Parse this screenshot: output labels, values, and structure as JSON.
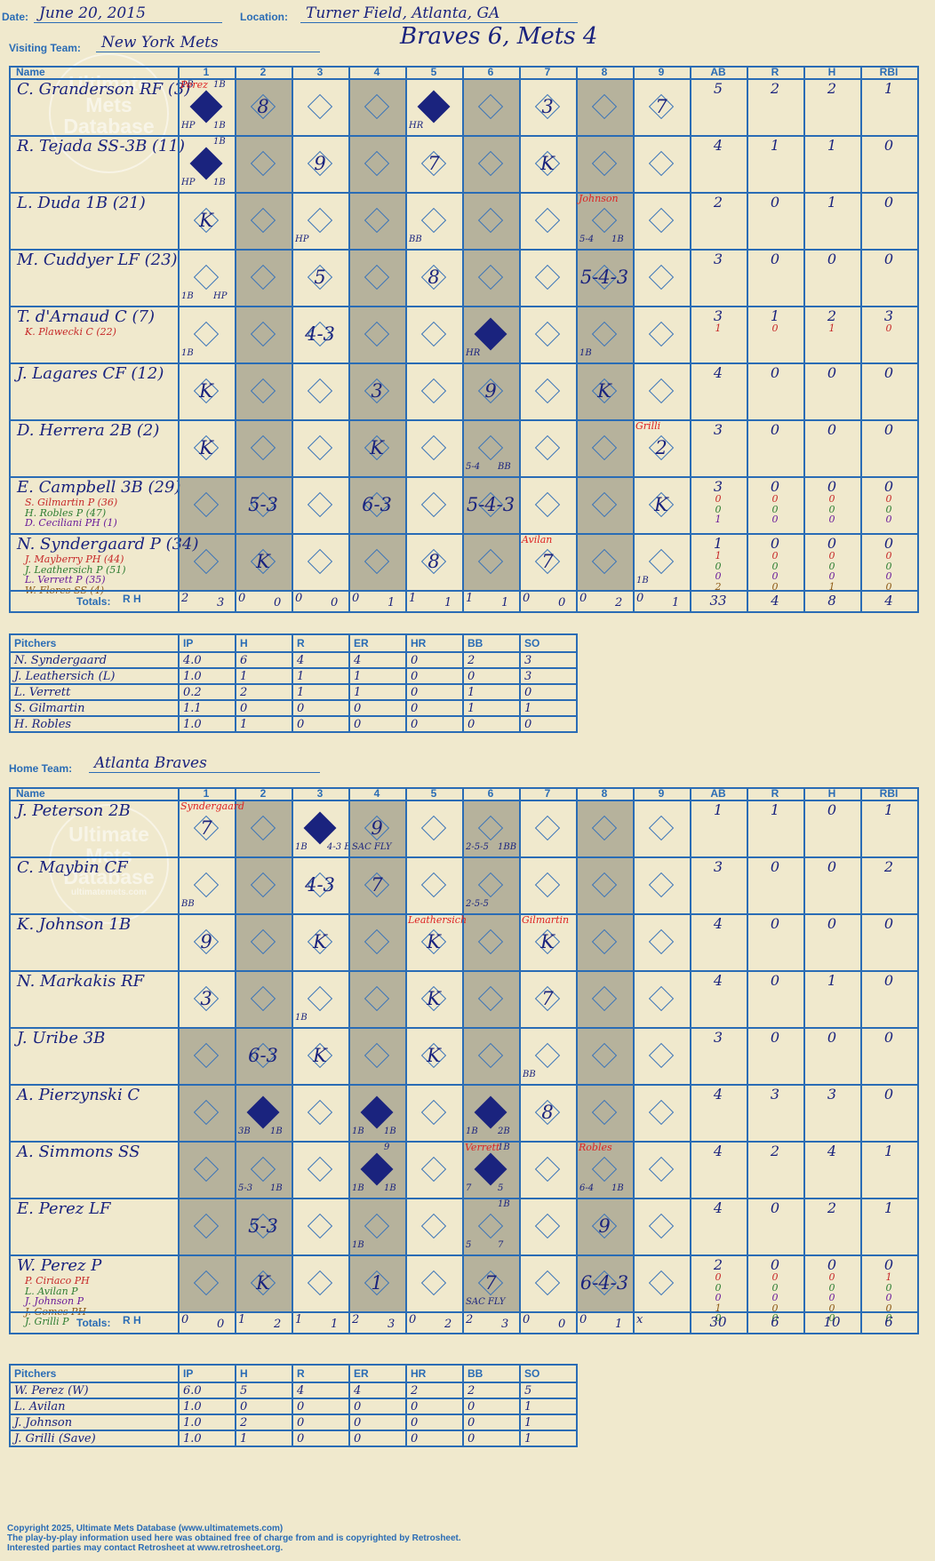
{
  "header": {
    "date_label": "Date:",
    "date": "June 20, 2015",
    "location_label": "Location:",
    "location": "Turner Field, Atlanta, GA",
    "visiting_label": "Visiting Team:",
    "visiting_team": "New York Mets",
    "home_label": "Home Team:",
    "home_team": "Atlanta Braves",
    "headline": "Braves 6, Mets 4"
  },
  "watermark": {
    "line1": "Ultimate",
    "line2": "Mets",
    "line3": "Database",
    "line4": "ultimatemets.com"
  },
  "columns": {
    "name": "Name",
    "innings": [
      "1",
      "2",
      "3",
      "4",
      "5",
      "6",
      "7",
      "8",
      "9"
    ],
    "stats": [
      "AB",
      "R",
      "H",
      "RBI"
    ]
  },
  "totals_label": "Totals:",
  "rh_label": {
    "r": "R",
    "h": "H"
  },
  "visitors": {
    "batters": [
      {
        "name": "C. Granderson RF (3)",
        "subs": [],
        "ab": "5",
        "r": "2",
        "h": "2",
        "rbi": "1",
        "sub_stats": []
      },
      {
        "name": "R. Tejada SS-3B (11)",
        "subs": [],
        "ab": "4",
        "r": "1",
        "h": "1",
        "rbi": "0",
        "sub_stats": []
      },
      {
        "name": "L. Duda 1B (21)",
        "subs": [],
        "ab": "2",
        "r": "0",
        "h": "1",
        "rbi": "0",
        "sub_stats": []
      },
      {
        "name": "M. Cuddyer LF (23)",
        "subs": [],
        "ab": "3",
        "r": "0",
        "h": "0",
        "rbi": "0",
        "sub_stats": []
      },
      {
        "name": "T. d'Arnaud C (7)",
        "subs": [
          {
            "t": "K. Plawecki C (22)",
            "c": "#c62828"
          }
        ],
        "ab": "3",
        "r": "1",
        "h": "2",
        "rbi": "3",
        "sub_stats": [
          {
            "c": "#c62828",
            "v": [
              "1",
              "0",
              "1",
              "0"
            ]
          }
        ]
      },
      {
        "name": "J. Lagares CF (12)",
        "subs": [],
        "ab": "4",
        "r": "0",
        "h": "0",
        "rbi": "0",
        "sub_stats": []
      },
      {
        "name": "D. Herrera 2B (2)",
        "subs": [],
        "ab": "3",
        "r": "0",
        "h": "0",
        "rbi": "0",
        "sub_stats": []
      },
      {
        "name": "E. Campbell 3B (29)",
        "subs": [
          {
            "t": "S. Gilmartin P (36)",
            "c": "#c62828"
          },
          {
            "t": "H. Robles P (47)",
            "c": "#2e7d32"
          },
          {
            "t": "D. Ceciliani PH (1)",
            "c": "#6a1b9a"
          }
        ],
        "ab": "3",
        "r": "0",
        "h": "0",
        "rbi": "0",
        "sub_stats": [
          {
            "c": "#c62828",
            "v": [
              "0",
              "0",
              "0",
              "0"
            ]
          },
          {
            "c": "#2e7d32",
            "v": [
              "0",
              "0",
              "0",
              "0"
            ]
          },
          {
            "c": "#6a1b9a",
            "v": [
              "1",
              "0",
              "0",
              "0"
            ]
          }
        ]
      },
      {
        "name": "N. Syndergaard P (34)",
        "subs": [
          {
            "t": "J. Mayberry PH (44)",
            "c": "#c62828"
          },
          {
            "t": "J. Leathersich P (51)",
            "c": "#2e7d32"
          },
          {
            "t": "L. Verrett P (35)",
            "c": "#6a1b9a"
          },
          {
            "t": "W. Flores SS (4)",
            "c": "#8d5a16"
          }
        ],
        "ab": "1",
        "r": "0",
        "h": "0",
        "rbi": "0",
        "sub_stats": [
          {
            "c": "#c62828",
            "v": [
              "1",
              "0",
              "0",
              "0"
            ]
          },
          {
            "c": "#2e7d32",
            "v": [
              "0",
              "0",
              "0",
              "0"
            ]
          },
          {
            "c": "#6a1b9a",
            "v": [
              "0",
              "0",
              "0",
              "0"
            ]
          },
          {
            "c": "#8d5a16",
            "v": [
              "2",
              "0",
              "1",
              "0"
            ]
          }
        ]
      }
    ],
    "cells": [
      [
        {
          "play": "",
          "scored": true,
          "notes": [
            "HP",
            "1B",
            "1B",
            "1B"
          ],
          "pitch": "Perez"
        },
        {
          "play": "8"
        },
        {},
        {},
        {
          "play": "",
          "scored": true,
          "notes": [
            "HR"
          ]
        },
        {},
        {
          "play": "3"
        },
        {},
        {
          "play": "7"
        }
      ],
      [
        {
          "play": "",
          "scored": true,
          "notes": [
            "HP",
            "1B",
            "1B"
          ]
        },
        {},
        {
          "play": "9"
        },
        {},
        {
          "play": "7"
        },
        {},
        {
          "play": "K"
        },
        {},
        {}
      ],
      [
        {
          "play": "K"
        },
        {},
        {
          "play": "",
          "notes": [
            "HP"
          ]
        },
        {},
        {
          "play": "",
          "notes": [
            "BB"
          ]
        },
        {},
        {},
        {
          "play": "",
          "notes": [
            "5-4",
            "1B"
          ],
          "pitch": "Johnson"
        },
        {}
      ],
      [
        {
          "play": "",
          "notes": [
            "1B",
            "HP"
          ]
        },
        {},
        {
          "play": "5"
        },
        {},
        {
          "play": "8"
        },
        {},
        {},
        {
          "play": "5-4-3"
        },
        {}
      ],
      [
        {
          "play": "",
          "notes": [
            "1B"
          ]
        },
        {},
        {
          "play": "4-3"
        },
        {},
        {},
        {
          "play": "",
          "scored": true,
          "notes": [
            "HR"
          ]
        },
        {},
        {
          "play": "",
          "notes": [
            "1B"
          ]
        },
        {}
      ],
      [
        {
          "play": "K"
        },
        {},
        {},
        {
          "play": "3"
        },
        {},
        {
          "play": "9"
        },
        {},
        {
          "play": "K"
        },
        {}
      ],
      [
        {
          "play": "K"
        },
        {},
        {},
        {
          "play": "K"
        },
        {},
        {
          "play": "",
          "notes": [
            "5-4",
            "BB"
          ]
        },
        {},
        {},
        {
          "play": "2",
          "pitch": "Grilli"
        }
      ],
      [
        {},
        {
          "play": "5-3"
        },
        {},
        {
          "play": "6-3"
        },
        {},
        {
          "play": "5-4-3"
        },
        {},
        {},
        {
          "play": "K"
        }
      ],
      [
        {},
        {
          "play": "K"
        },
        {},
        {},
        {
          "play": "8"
        },
        {},
        {
          "play": "7",
          "pitch": "Avilan"
        },
        {},
        {
          "play": "",
          "notes": [
            "1B"
          ]
        }
      ]
    ],
    "totals": {
      "inn_r": [
        "2",
        "0",
        "0",
        "0",
        "1",
        "1",
        "0",
        "0",
        "0"
      ],
      "inn_h": [
        "3",
        "0",
        "0",
        "1",
        "1",
        "1",
        "0",
        "2",
        "1"
      ],
      "ab": "33",
      "r": "4",
      "h": "8",
      "rbi": "4"
    },
    "pitchers": {
      "headers": [
        "Pitchers",
        "IP",
        "H",
        "R",
        "ER",
        "HR",
        "BB",
        "SO"
      ],
      "rows": [
        [
          "N. Syndergaard",
          "4.0",
          "6",
          "4",
          "4",
          "0",
          "2",
          "3"
        ],
        [
          "J. Leathersich (L)",
          "1.0",
          "1",
          "1",
          "1",
          "0",
          "0",
          "3"
        ],
        [
          "L. Verrett",
          "0.2",
          "2",
          "1",
          "1",
          "0",
          "1",
          "0"
        ],
        [
          "S. Gilmartin",
          "1.1",
          "0",
          "0",
          "0",
          "0",
          "1",
          "1"
        ],
        [
          "H. Robles",
          "1.0",
          "1",
          "0",
          "0",
          "0",
          "0",
          "0"
        ]
      ]
    }
  },
  "home": {
    "batters": [
      {
        "name": "J. Peterson 2B",
        "subs": [],
        "ab": "1",
        "r": "1",
        "h": "0",
        "rbi": "1",
        "sub_stats": []
      },
      {
        "name": "C. Maybin CF",
        "subs": [],
        "ab": "3",
        "r": "0",
        "h": "0",
        "rbi": "2",
        "sub_stats": []
      },
      {
        "name": "K. Johnson 1B",
        "subs": [],
        "ab": "4",
        "r": "0",
        "h": "0",
        "rbi": "0",
        "sub_stats": []
      },
      {
        "name": "N. Markakis RF",
        "subs": [],
        "ab": "4",
        "r": "0",
        "h": "1",
        "rbi": "0",
        "sub_stats": []
      },
      {
        "name": "J. Uribe 3B",
        "subs": [],
        "ab": "3",
        "r": "0",
        "h": "0",
        "rbi": "0",
        "sub_stats": []
      },
      {
        "name": "A. Pierzynski C",
        "subs": [],
        "ab": "4",
        "r": "3",
        "h": "3",
        "rbi": "0",
        "sub_stats": []
      },
      {
        "name": "A. Simmons SS",
        "subs": [],
        "ab": "4",
        "r": "2",
        "h": "4",
        "rbi": "1",
        "sub_stats": []
      },
      {
        "name": "E. Perez LF",
        "subs": [],
        "ab": "4",
        "r": "0",
        "h": "2",
        "rbi": "1",
        "sub_stats": []
      },
      {
        "name": "W. Perez P",
        "subs": [
          {
            "t": "P. Ciriaco PH",
            "c": "#c62828"
          },
          {
            "t": "L. Avilan P",
            "c": "#2e7d32"
          },
          {
            "t": "J. Johnson P",
            "c": "#6a1b9a"
          },
          {
            "t": "J. Gomes PH",
            "c": "#8d5a16"
          },
          {
            "t": "J. Grilli P",
            "c": "#2e7d32"
          }
        ],
        "ab": "2",
        "r": "0",
        "h": "0",
        "rbi": "0",
        "sub_stats": [
          {
            "c": "#c62828",
            "v": [
              "0",
              "0",
              "0",
              "1"
            ]
          },
          {
            "c": "#2e7d32",
            "v": [
              "0",
              "0",
              "0",
              "0"
            ]
          },
          {
            "c": "#6a1b9a",
            "v": [
              "0",
              "0",
              "0",
              "0"
            ]
          },
          {
            "c": "#8d5a16",
            "v": [
              "1",
              "0",
              "0",
              "0"
            ]
          },
          {
            "c": "#2e7d32",
            "v": [
              "0",
              "0",
              "0",
              "0"
            ]
          }
        ]
      }
    ],
    "cells": [
      [
        {
          "play": "7",
          "pitch": "Syndergaard"
        },
        {},
        {
          "play": "",
          "scored": true,
          "notes": [
            "1B",
            "4-3 BB"
          ]
        },
        {
          "play": "9",
          "notes": [
            "SAC FLY"
          ]
        },
        {},
        {
          "play": "",
          "notes": [
            "2-5-5",
            "1BB"
          ]
        },
        {},
        {},
        {}
      ],
      [
        {
          "play": "",
          "notes": [
            "BB"
          ]
        },
        {},
        {
          "play": "4-3"
        },
        {
          "play": "7"
        },
        {},
        {
          "play": "",
          "notes": [
            "2-5-5"
          ]
        },
        {},
        {},
        {}
      ],
      [
        {
          "play": "9"
        },
        {},
        {
          "play": "K"
        },
        {},
        {
          "play": "K",
          "pitch": "Leathersich"
        },
        {},
        {
          "play": "K",
          "pitch": "Gilmartin"
        },
        {},
        {}
      ],
      [
        {
          "play": "3"
        },
        {},
        {
          "play": "",
          "notes": [
            "1B"
          ]
        },
        {},
        {
          "play": "K"
        },
        {},
        {
          "play": "7"
        },
        {},
        {}
      ],
      [
        {},
        {
          "play": "6-3"
        },
        {
          "play": "K"
        },
        {},
        {
          "play": "K"
        },
        {},
        {
          "play": "",
          "notes": [
            "BB"
          ]
        },
        {},
        {}
      ],
      [
        {},
        {
          "play": "",
          "scored": true,
          "notes": [
            "3B",
            "1B"
          ]
        },
        {},
        {
          "play": "",
          "scored": true,
          "notes": [
            "1B",
            "1B"
          ]
        },
        {},
        {
          "play": "",
          "scored": true,
          "notes": [
            "1B",
            "2B"
          ]
        },
        {
          "play": "8"
        },
        {},
        {}
      ],
      [
        {},
        {
          "play": "",
          "notes": [
            "5-3",
            "1B"
          ]
        },
        {},
        {
          "play": "",
          "scored": true,
          "notes": [
            "1B",
            "1B",
            "9"
          ]
        },
        {},
        {
          "play": "",
          "scored": true,
          "notes": [
            "7",
            "5",
            "1B"
          ],
          "pitch": "Verrett"
        },
        {},
        {
          "play": "",
          "notes": [
            "6-4",
            "1B"
          ],
          "pitch": "Robles"
        },
        {}
      ],
      [
        {},
        {
          "play": "5-3"
        },
        {},
        {
          "play": "",
          "notes": [
            "1B"
          ]
        },
        {},
        {
          "play": "",
          "notes": [
            "5",
            "7",
            "1B"
          ]
        },
        {},
        {
          "play": "9"
        },
        {}
      ],
      [
        {},
        {
          "play": "K"
        },
        {},
        {
          "play": "1"
        },
        {},
        {
          "play": "7",
          "notes": [
            "SAC FLY"
          ]
        },
        {},
        {
          "play": "6-4-3"
        },
        {}
      ]
    ],
    "totals": {
      "inn_r": [
        "0",
        "1",
        "1",
        "2",
        "0",
        "2",
        "0",
        "0",
        "x"
      ],
      "inn_h": [
        "0",
        "2",
        "1",
        "3",
        "2",
        "3",
        "0",
        "1",
        ""
      ],
      "ab": "30",
      "r": "6",
      "h": "10",
      "rbi": "6"
    },
    "pitchers": {
      "headers": [
        "Pitchers",
        "IP",
        "H",
        "R",
        "ER",
        "HR",
        "BB",
        "SO"
      ],
      "rows": [
        [
          "W. Perez (W)",
          "6.0",
          "5",
          "4",
          "4",
          "2",
          "2",
          "5"
        ],
        [
          "L. Avilan",
          "1.0",
          "0",
          "0",
          "0",
          "0",
          "0",
          "1"
        ],
        [
          "J. Johnson",
          "1.0",
          "2",
          "0",
          "0",
          "0",
          "0",
          "1"
        ],
        [
          "J. Grilli (Save)",
          "1.0",
          "1",
          "0",
          "0",
          "0",
          "0",
          "1"
        ]
      ]
    }
  },
  "copyright": {
    "line1": "Copyright 2025, Ultimate Mets Database (www.ultimatemets.com)",
    "line2": "The play-by-play information used here was obtained free of charge from and is copyrighted by Retrosheet.",
    "line3": "Interested parties may contact Retrosheet at www.retrosheet.org."
  }
}
